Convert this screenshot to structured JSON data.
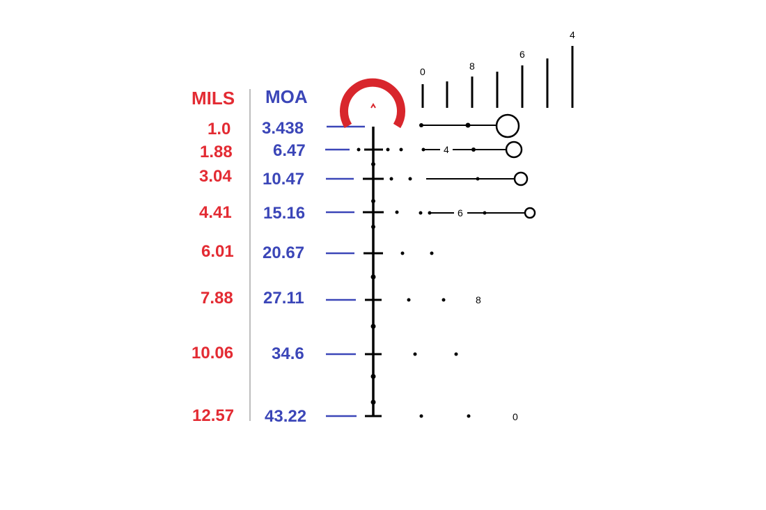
{
  "headers": {
    "mils": "MILS",
    "moa": "MOA"
  },
  "rows": [
    {
      "mils": "1.0",
      "moa": "3.438"
    },
    {
      "mils": "1.88",
      "moa": "6.47"
    },
    {
      "mils": "3.04",
      "moa": "10.47"
    },
    {
      "mils": "4.41",
      "moa": "15.16"
    },
    {
      "mils": "6.01",
      "moa": "20.67"
    },
    {
      "mils": "7.88",
      "moa": "27.11"
    },
    {
      "mils": "10.06",
      "moa": "34.6"
    },
    {
      "mils": "12.57",
      "moa": "43.22"
    }
  ],
  "rangefinder_bar_labels": [
    "0",
    "8",
    "6",
    "4"
  ],
  "row_labels": [
    "4",
    "6",
    "8",
    "0"
  ],
  "colors": {
    "mils": "#e32b33",
    "moa": "#3b46b8",
    "reticle": "#000000",
    "horseshoe": "#d8262c"
  },
  "icons": {
    "horseshoe": "horseshoe-reticle-icon",
    "chevron": "center-chevron-icon"
  }
}
